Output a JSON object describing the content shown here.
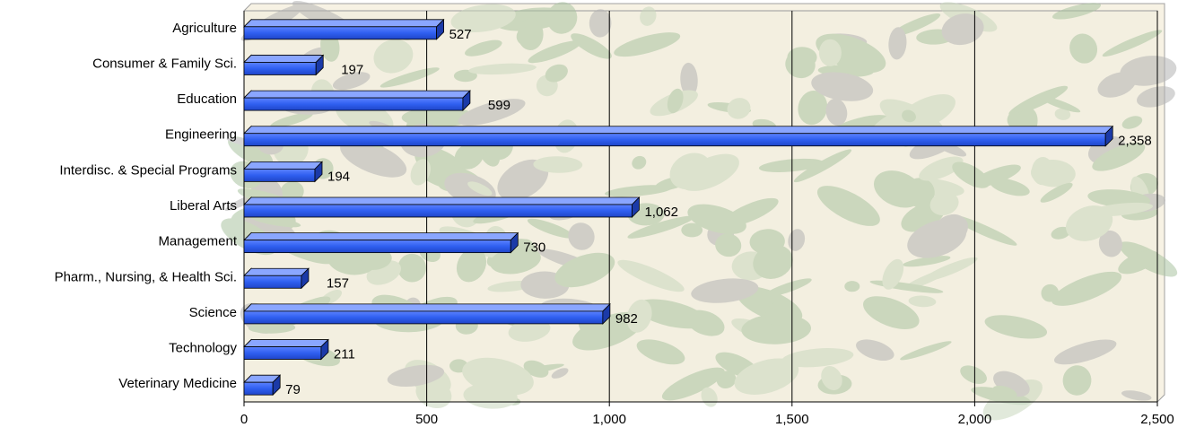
{
  "chart_data": {
    "type": "bar",
    "orientation": "horizontal",
    "categories": [
      "Agriculture",
      "Consumer & Family Sci.",
      "Education",
      "Engineering",
      "Interdisc. & Special Programs",
      "Liberal Arts",
      "Management",
      "Pharm., Nursing, & Health Sci.",
      "Science",
      "Technology",
      "Veterinary Medicine"
    ],
    "series": [
      {
        "values": [
          527,
          197,
          599,
          2358,
          194,
          1062,
          730,
          157,
          982,
          211,
          79
        ],
        "color": "#2f5ff0",
        "value_labels": [
          "527",
          "197",
          "599",
          "2,358",
          "194",
          "1,062",
          "730",
          "157",
          "982",
          "211",
          "79"
        ]
      }
    ],
    "xlim": [
      0,
      2500
    ],
    "x_ticks": [
      0,
      500,
      1000,
      1500,
      2000,
      2500
    ],
    "x_tick_labels": [
      "0",
      "500",
      "1,000",
      "1,500",
      "2,000",
      "2,500"
    ],
    "grid": "vertical",
    "legend": "none",
    "background": "textured-camouflage"
  }
}
